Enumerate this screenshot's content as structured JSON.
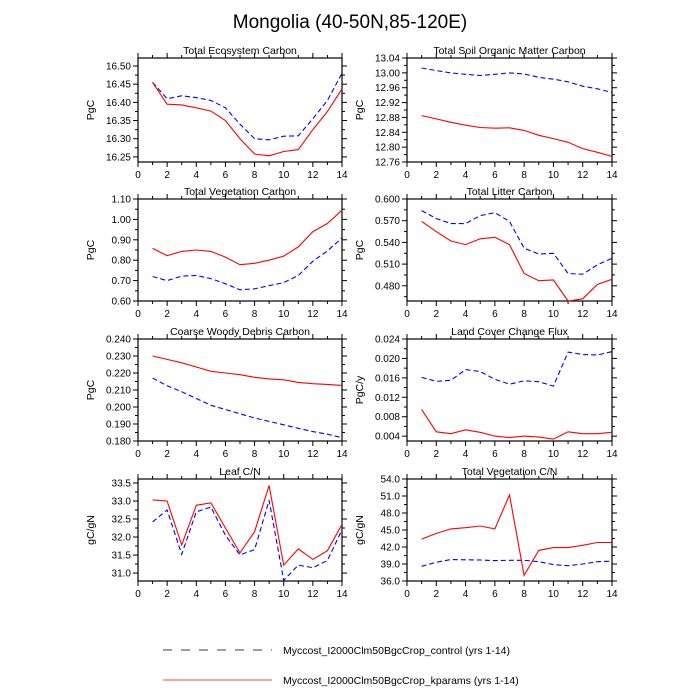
{
  "title": "Mongolia (40-50N,85-120E)",
  "legend": [
    {
      "label": "Myccost_I2000Clm50BgcCrop_control (yrs 1-14)",
      "color": "#0000ff",
      "style": "dashed"
    },
    {
      "label": "Myccost_I2000Clm50BgcCrop_kparams (yrs 1-14)",
      "color": "#ff0000",
      "style": "solid"
    }
  ],
  "chart_data": [
    {
      "type": "line",
      "title": "Total Ecosystem Carbon",
      "ylabel": "PgC",
      "xlabel": "",
      "xlim": [
        0,
        14
      ],
      "ylim": [
        16.236,
        16.522
      ],
      "xticks": [
        "0",
        "2",
        "4",
        "6",
        "8",
        "10",
        "12",
        "14"
      ],
      "yticks": [
        "16.25",
        "16.30",
        "16.35",
        "16.40",
        "16.45",
        "16.50"
      ],
      "x": [
        1,
        2,
        3,
        4,
        5,
        6,
        7,
        8,
        9,
        10,
        11,
        12,
        13,
        14
      ],
      "series": [
        {
          "name": "control",
          "values": [
            16.455,
            16.41,
            16.418,
            16.413,
            16.405,
            16.385,
            16.34,
            16.3,
            16.297,
            16.307,
            16.308,
            16.355,
            16.405,
            16.48
          ]
        },
        {
          "name": "kparams",
          "values": [
            16.455,
            16.395,
            16.393,
            16.385,
            16.376,
            16.35,
            16.3,
            16.258,
            16.253,
            16.265,
            16.27,
            16.325,
            16.375,
            16.437
          ]
        }
      ]
    },
    {
      "type": "line",
      "title": "Total Soil Organic Matter Carbon",
      "ylabel": "PgC",
      "xlabel": "",
      "xlim": [
        0,
        14
      ],
      "ylim": [
        12.76,
        13.04
      ],
      "xticks": [
        "0",
        "2",
        "4",
        "6",
        "8",
        "10",
        "12",
        "14"
      ],
      "yticks": [
        "12.76",
        "12.80",
        "12.84",
        "12.88",
        "12.92",
        "12.96",
        "13.00",
        "13.04"
      ],
      "x": [
        1,
        2,
        3,
        4,
        5,
        6,
        7,
        8,
        9,
        10,
        11,
        12,
        13,
        14
      ],
      "series": [
        {
          "name": "control",
          "values": [
            13.013,
            13.006,
            13.0,
            12.996,
            12.993,
            12.996,
            13.0,
            12.997,
            12.988,
            12.983,
            12.976,
            12.964,
            12.957,
            12.947
          ]
        },
        {
          "name": "kparams",
          "values": [
            12.885,
            12.876,
            12.867,
            12.859,
            12.853,
            12.851,
            12.852,
            12.845,
            12.832,
            12.823,
            12.813,
            12.796,
            12.786,
            12.775
          ]
        }
      ]
    },
    {
      "type": "line",
      "title": "Total Vegetation Carbon",
      "ylabel": "PgC",
      "xlabel": "",
      "xlim": [
        0,
        14
      ],
      "ylim": [
        0.6,
        1.1
      ],
      "xticks": [
        "0",
        "2",
        "4",
        "6",
        "8",
        "10",
        "12",
        "14"
      ],
      "yticks": [
        "0.60",
        "0.70",
        "0.80",
        "0.90",
        "1.00",
        "1.10"
      ],
      "x": [
        1,
        2,
        3,
        4,
        5,
        6,
        7,
        8,
        9,
        10,
        11,
        12,
        13,
        14
      ],
      "series": [
        {
          "name": "control",
          "values": [
            0.72,
            0.7,
            0.722,
            0.725,
            0.71,
            0.685,
            0.655,
            0.66,
            0.675,
            0.69,
            0.725,
            0.795,
            0.845,
            0.91
          ]
        },
        {
          "name": "kparams",
          "values": [
            0.858,
            0.822,
            0.843,
            0.85,
            0.843,
            0.815,
            0.778,
            0.785,
            0.8,
            0.82,
            0.865,
            0.94,
            0.98,
            1.045
          ]
        }
      ]
    },
    {
      "type": "line",
      "title": "Total Litter Carbon",
      "ylabel": "PgC",
      "xlabel": "",
      "xlim": [
        0,
        14
      ],
      "ylim": [
        0.459,
        0.6
      ],
      "xticks": [
        "0",
        "2",
        "4",
        "6",
        "8",
        "10",
        "12",
        "14"
      ],
      "yticks": [
        "0.480",
        "0.510",
        "0.540",
        "0.570",
        "0.600"
      ],
      "x": [
        1,
        2,
        3,
        4,
        5,
        6,
        7,
        8,
        9,
        10,
        11,
        12,
        13,
        14
      ],
      "series": [
        {
          "name": "control",
          "values": [
            0.584,
            0.573,
            0.566,
            0.566,
            0.577,
            0.581,
            0.569,
            0.532,
            0.524,
            0.525,
            0.497,
            0.496,
            0.509,
            0.518
          ]
        },
        {
          "name": "kparams",
          "values": [
            0.569,
            0.555,
            0.542,
            0.537,
            0.545,
            0.547,
            0.537,
            0.497,
            0.487,
            0.488,
            0.459,
            0.462,
            0.482,
            0.489
          ]
        }
      ]
    },
    {
      "type": "line",
      "title": "Coarse Woody Debris Carbon",
      "ylabel": "PgC",
      "xlabel": "",
      "xlim": [
        0,
        14
      ],
      "ylim": [
        0.18,
        0.24
      ],
      "xticks": [
        "0",
        "2",
        "4",
        "6",
        "8",
        "10",
        "12",
        "14"
      ],
      "yticks": [
        "0.180",
        "0.190",
        "0.200",
        "0.210",
        "0.220",
        "0.230",
        "0.240"
      ],
      "x": [
        1,
        2,
        3,
        4,
        5,
        6,
        7,
        8,
        9,
        10,
        11,
        12,
        13,
        14
      ],
      "series": [
        {
          "name": "control",
          "values": [
            0.217,
            0.2125,
            0.209,
            0.205,
            0.201,
            0.1985,
            0.196,
            0.1935,
            0.1915,
            0.1895,
            0.1875,
            0.1855,
            0.184,
            0.182
          ]
        },
        {
          "name": "kparams",
          "values": [
            0.23,
            0.228,
            0.226,
            0.2235,
            0.221,
            0.22,
            0.219,
            0.2175,
            0.2165,
            0.216,
            0.2145,
            0.2137,
            0.2133,
            0.2127
          ]
        }
      ]
    },
    {
      "type": "line",
      "title": "Land Cover Change Flux",
      "ylabel": "PgC/y",
      "xlabel": "",
      "xlim": [
        0,
        14
      ],
      "ylim": [
        0.003,
        0.024
      ],
      "xticks": [
        "0",
        "2",
        "4",
        "6",
        "8",
        "10",
        "12",
        "14"
      ],
      "yticks": [
        "0.004",
        "0.008",
        "0.012",
        "0.016",
        "0.020",
        "0.024"
      ],
      "x": [
        1,
        2,
        3,
        4,
        5,
        6,
        7,
        8,
        9,
        10,
        11,
        12,
        13,
        14
      ],
      "series": [
        {
          "name": "control",
          "values": [
            0.0161,
            0.0153,
            0.0155,
            0.0177,
            0.0173,
            0.0157,
            0.0147,
            0.0154,
            0.0152,
            0.0143,
            0.0213,
            0.0208,
            0.0207,
            0.0214
          ]
        },
        {
          "name": "kparams",
          "values": [
            0.0095,
            0.0049,
            0.0045,
            0.0053,
            0.0048,
            0.004,
            0.0037,
            0.004,
            0.0038,
            0.0034,
            0.0049,
            0.0045,
            0.0045,
            0.0048
          ]
        }
      ]
    },
    {
      "type": "line",
      "title": "Leaf C/N",
      "ylabel": "gC/gN",
      "xlabel": "",
      "xlim": [
        0,
        14
      ],
      "ylim": [
        30.78,
        33.61
      ],
      "xticks": [
        "0",
        "2",
        "4",
        "6",
        "8",
        "10",
        "12",
        "14"
      ],
      "yticks": [
        "31.0",
        "31.5",
        "32.0",
        "32.5",
        "33.0",
        "33.5"
      ],
      "x": [
        1,
        2,
        3,
        4,
        5,
        6,
        7,
        8,
        9,
        10,
        11,
        12,
        13,
        14
      ],
      "series": [
        {
          "name": "control",
          "values": [
            32.42,
            32.75,
            31.52,
            32.7,
            32.83,
            32.05,
            31.5,
            31.65,
            33.02,
            30.8,
            31.22,
            31.15,
            31.35,
            32.2
          ]
        },
        {
          "name": "kparams",
          "values": [
            33.03,
            33.0,
            31.78,
            32.88,
            32.95,
            32.25,
            31.56,
            32.15,
            33.43,
            31.22,
            31.67,
            31.38,
            31.62,
            32.35
          ]
        }
      ]
    },
    {
      "type": "line",
      "title": "Total Vegetation C/N",
      "ylabel": "gC/gN",
      "xlabel": "",
      "xlim": [
        0,
        14
      ],
      "ylim": [
        36,
        54
      ],
      "xticks": [
        "0",
        "2",
        "4",
        "6",
        "8",
        "10",
        "12",
        "14"
      ],
      "yticks": [
        "36.0",
        "39.0",
        "42.0",
        "45.0",
        "48.0",
        "51.0",
        "54.0"
      ],
      "x": [
        1,
        2,
        3,
        4,
        5,
        6,
        7,
        8,
        9,
        10,
        11,
        12,
        13,
        14
      ],
      "series": [
        {
          "name": "control",
          "values": [
            38.6,
            39.3,
            39.8,
            39.75,
            39.7,
            39.6,
            39.65,
            39.65,
            39.4,
            38.9,
            38.7,
            39.0,
            39.4,
            39.5
          ]
        },
        {
          "name": "kparams",
          "values": [
            43.4,
            44.4,
            45.2,
            45.4,
            45.7,
            45.2,
            51.2,
            37.0,
            41.4,
            41.9,
            41.9,
            42.3,
            42.8,
            42.8
          ]
        }
      ]
    }
  ]
}
